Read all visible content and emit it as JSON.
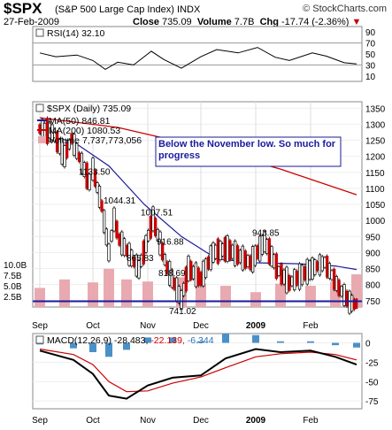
{
  "header": {
    "symbol": "$SPX",
    "name": "(S&P 500 Large Cap Index)",
    "exchange": "INDX",
    "brand": "© StockCharts.com",
    "date": "27-Feb-2009",
    "close_label": "Close",
    "close": "735.09",
    "volume_label": "Volume",
    "volume": "7.7B",
    "chg_label": "Chg",
    "chg": "-17.74 (-2.36%)",
    "chg_arrow": "▼"
  },
  "colors": {
    "up": "#000000",
    "down": "#cc0000",
    "ma50": "#1a1a9a",
    "ma200": "#cc0000",
    "volume": "#e8aab0",
    "support_line": "#1a1aa0",
    "macd": "#000000",
    "signal": "#cc0000",
    "histogram": "#4a90c8"
  },
  "chart_data": [
    {
      "type": "line",
      "title": "RSI(14) 32.10",
      "y_ticks": [
        "90",
        "70",
        "50",
        "30",
        "10"
      ],
      "ylim": [
        0,
        100
      ],
      "guide_lines": [
        70,
        30
      ],
      "x": [
        "2008-09-01",
        "2008-09-10",
        "2008-09-22",
        "2008-10-01",
        "2008-10-08",
        "2008-10-15",
        "2008-10-24",
        "2008-11-03",
        "2008-11-10",
        "2008-11-20",
        "2008-12-01",
        "2008-12-10",
        "2008-12-22",
        "2009-01-02",
        "2009-01-12",
        "2009-01-20",
        "2009-02-02",
        "2009-02-10",
        "2009-02-20",
        "2009-02-27"
      ],
      "values": [
        52,
        45,
        48,
        38,
        22,
        35,
        30,
        55,
        40,
        24,
        45,
        58,
        52,
        62,
        44,
        38,
        52,
        46,
        34,
        32
      ]
    },
    {
      "type": "line",
      "title": "$SPX (Daily) 735.09",
      "y_ticks": [
        "1350",
        "1300",
        "1250",
        "1200",
        "1150",
        "1100",
        "1050",
        "1000",
        "950",
        "900",
        "850",
        "800",
        "750"
      ],
      "ylim": [
        730,
        1370
      ],
      "series": [
        {
          "name": "MA(50) 846.81"
        },
        {
          "name": "MA(200) 1080.53"
        },
        {
          "name": "Volume 7,737,773,056"
        }
      ],
      "price_x": [
        "2008-09-01",
        "2008-09-08",
        "2008-09-15",
        "2008-09-19",
        "2008-09-29",
        "2008-10-01",
        "2008-10-06",
        "2008-10-10",
        "2008-10-13",
        "2008-10-16",
        "2008-10-27",
        "2008-11-04",
        "2008-11-12",
        "2008-11-20",
        "2008-11-24",
        "2008-12-01",
        "2008-12-08",
        "2008-12-16",
        "2008-12-29",
        "2009-01-06",
        "2009-01-14",
        "2009-01-20",
        "2009-02-02",
        "2009-02-09",
        "2009-02-17",
        "2009-02-23",
        "2009-02-27"
      ],
      "price": [
        1285,
        1275,
        1200,
        1255,
        1120,
        1160,
        1045,
        900,
        1003,
        940,
        848,
        1005,
        852,
        752,
        850,
        818,
        900,
        912,
        868,
        934,
        842,
        805,
        850,
        869,
        790,
        745,
        735
      ],
      "ma50_x": [
        "2008-09-01",
        "2008-09-20",
        "2008-10-10",
        "2008-10-30",
        "2008-11-20",
        "2008-12-10",
        "2009-01-01",
        "2009-01-25",
        "2009-02-15",
        "2009-02-27"
      ],
      "ma50": [
        1270,
        1245,
        1170,
        1050,
        950,
        880,
        868,
        865,
        858,
        847
      ],
      "ma200_x": [
        "2008-09-01",
        "2008-10-15",
        "2008-12-01",
        "2009-01-15",
        "2009-02-27"
      ],
      "ma200": [
        1320,
        1290,
        1230,
        1160,
        1080
      ],
      "support": 748,
      "point_labels": [
        {
          "text": "1133.50",
          "x": "2008-09-30",
          "y": 1133.5
        },
        {
          "text": "1044.31",
          "x": "2008-10-14",
          "y": 1044.31
        },
        {
          "text": "865.83",
          "x": "2008-10-27",
          "y": 865.83
        },
        {
          "text": "1007.51",
          "x": "2008-11-04",
          "y": 1007.51
        },
        {
          "text": "916.88",
          "x": "2008-11-13",
          "y": 916.88
        },
        {
          "text": "818.69",
          "x": "2008-11-14",
          "y": 818.69
        },
        {
          "text": "741.02",
          "x": "2008-11-20",
          "y": 741.02
        },
        {
          "text": "943.85",
          "x": "2009-01-06",
          "y": 943.85
        }
      ],
      "annotation": "Below the November low. So much for progress",
      "volume_ticks": [
        "10.0B",
        "7.5B",
        "5.0B",
        "2.5B"
      ],
      "volume_x": [
        "2008-09-01",
        "2008-09-15",
        "2008-10-01",
        "2008-10-10",
        "2008-10-20",
        "2008-11-01",
        "2008-11-20",
        "2008-12-01",
        "2008-12-15",
        "2009-01-01",
        "2009-01-15",
        "2009-02-01",
        "2009-02-15",
        "2009-02-27"
      ],
      "volume": [
        4.5,
        6.5,
        5.8,
        9.0,
        6.5,
        6.0,
        7.0,
        5.5,
        5.0,
        3.5,
        5.5,
        5.0,
        6.0,
        7.7
      ]
    },
    {
      "type": "line",
      "title": "MACD(12,26,9) -28.483, -22.139, -6.344",
      "y_ticks": [
        "0",
        "-25",
        "-50",
        "-75"
      ],
      "ylim": [
        -85,
        12
      ],
      "x": [
        "2008-09-01",
        "2008-09-20",
        "2008-10-01",
        "2008-10-10",
        "2008-10-20",
        "2008-11-01",
        "2008-11-15",
        "2008-12-01",
        "2008-12-15",
        "2009-01-01",
        "2009-01-15",
        "2009-02-01",
        "2009-02-15",
        "2009-02-27"
      ],
      "macd": [
        -10,
        -22,
        -40,
        -68,
        -72,
        -55,
        -45,
        -42,
        -20,
        -8,
        -12,
        -10,
        -18,
        -28
      ],
      "signal": [
        -8,
        -15,
        -28,
        -50,
        -63,
        -62,
        -52,
        -44,
        -32,
        -18,
        -14,
        -12,
        -15,
        -22
      ],
      "histogram": [
        -2,
        -7,
        -12,
        -18,
        -9,
        7,
        7,
        2,
        12,
        10,
        2,
        2,
        -3,
        -6
      ]
    }
  ],
  "x_ticks": [
    "Sep",
    "Oct",
    "Nov",
    "Dec",
    "2009",
    "Feb"
  ]
}
